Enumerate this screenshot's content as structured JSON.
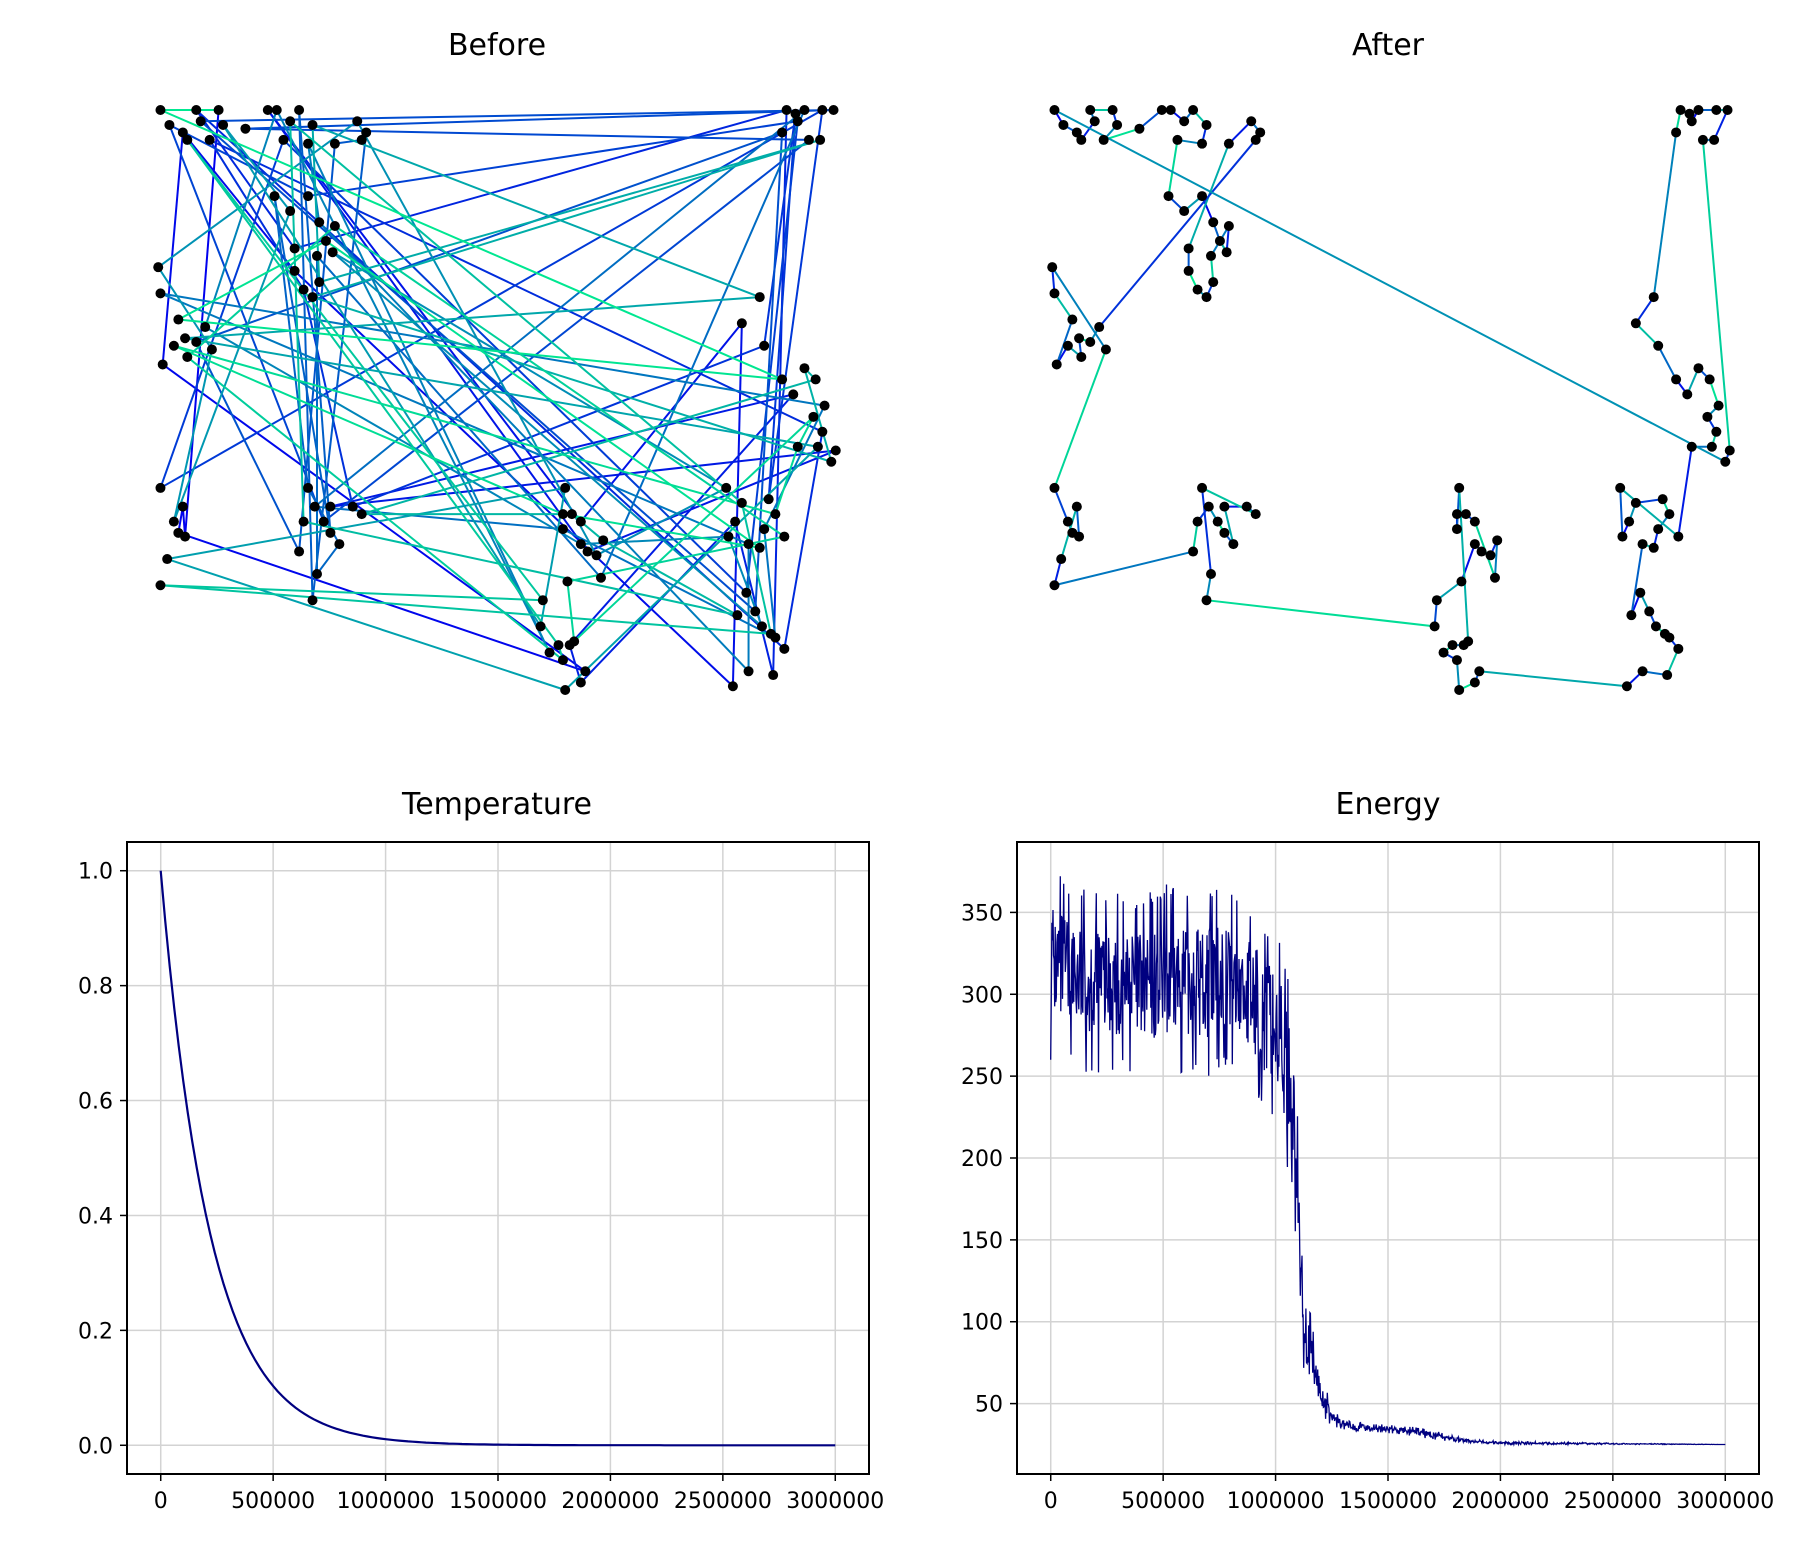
{
  "chart_data": [
    {
      "type": "line",
      "title": "Before",
      "description_of_marks": "random tour connecting cities",
      "axes_visible": false
    },
    {
      "type": "line",
      "title": "After",
      "axes_visible": false
    },
    {
      "type": "line",
      "title": "Temperature",
      "xlabel": "",
      "ylabel": "",
      "xlim": [
        -150000,
        3150000
      ],
      "ylim": [
        -0.05,
        1.05
      ],
      "xticks": [
        0,
        500000,
        1000000,
        1500000,
        2000000,
        2500000,
        3000000
      ],
      "xtick_labels": [
        "0",
        "500000",
        "1000000",
        "1500000",
        "2000000",
        "2500000",
        "3000000"
      ],
      "yticks": [
        0.0,
        0.2,
        0.4,
        0.6,
        0.8,
        1.0
      ],
      "ytick_labels": [
        "0.0",
        "0.2",
        "0.4",
        "0.6",
        "0.8",
        "1.0"
      ],
      "grid": true,
      "color": "#000080",
      "series": [
        {
          "x": [
            0,
            50000,
            100000,
            150000,
            200000,
            250000,
            300000,
            350000,
            400000,
            450000,
            500000,
            600000,
            700000,
            800000,
            900000,
            1000000,
            1200000,
            1500000,
            2000000,
            2500000,
            3000000
          ],
          "values": [
            1.0,
            0.88,
            0.75,
            0.6,
            0.48,
            0.38,
            0.3,
            0.23,
            0.18,
            0.14,
            0.1,
            0.06,
            0.035,
            0.02,
            0.012,
            0.007,
            0.003,
            0.001,
            0.0,
            0.0,
            0.0
          ]
        }
      ]
    },
    {
      "type": "line",
      "title": "Energy",
      "xlabel": "",
      "ylabel": "",
      "xlim": [
        -150000,
        3150000
      ],
      "ylim": [
        7,
        393
      ],
      "xticks": [
        0,
        500000,
        1000000,
        1500000,
        2000000,
        2500000,
        3000000
      ],
      "xtick_labels": [
        "0",
        "500000",
        "1000000",
        "1500000",
        "2000000",
        "2500000",
        "3000000"
      ],
      "yticks": [
        50,
        100,
        150,
        200,
        250,
        300,
        350
      ],
      "ytick_labels": [
        "50",
        "100",
        "150",
        "200",
        "250",
        "300",
        "350"
      ],
      "grid": true,
      "color": "#000080",
      "series": [
        {
          "band_x": [
            0,
            100000,
            200000,
            300000,
            400000,
            500000,
            600000,
            700000,
            800000,
            850000,
            900000,
            950000,
            1000000,
            1030000,
            1060000,
            1080000,
            1100000,
            1120000,
            1150000,
            1200000,
            1250000,
            1300000,
            1400000,
            1500000,
            1600000,
            1700000,
            1800000,
            1900000,
            2000000,
            2500000,
            3000000
          ],
          "band_high": [
            378,
            368,
            365,
            362,
            360,
            368,
            362,
            364,
            365,
            358,
            354,
            345,
            340,
            330,
            310,
            280,
            220,
            150,
            110,
            70,
            48,
            40,
            38,
            37,
            36,
            34,
            30,
            28,
            27,
            26,
            25
          ],
          "band_low": [
            260,
            255,
            250,
            252,
            248,
            250,
            252,
            250,
            255,
            250,
            240,
            230,
            220,
            205,
            190,
            170,
            110,
            70,
            55,
            42,
            36,
            34,
            33,
            32,
            30,
            28,
            26,
            25,
            25,
            25,
            25
          ]
        }
      ]
    }
  ],
  "cities": [
    [
      2,
      0
    ],
    [
      18,
      0
    ],
    [
      28,
      0
    ],
    [
      20,
      3
    ],
    [
      30,
      4
    ],
    [
      14,
      8
    ],
    [
      40,
      5
    ],
    [
      24,
      8
    ],
    [
      6,
      4
    ],
    [
      12,
      6
    ],
    [
      50,
      0
    ],
    [
      54,
      0
    ],
    [
      60,
      3
    ],
    [
      64,
      0
    ],
    [
      70,
      4
    ],
    [
      90,
      3
    ],
    [
      92,
      8
    ],
    [
      94,
      6
    ],
    [
      80,
      9
    ],
    [
      68,
      9
    ],
    [
      57,
      8
    ],
    [
      53,
      23
    ],
    [
      60,
      27
    ],
    [
      68,
      23
    ],
    [
      62,
      37
    ],
    [
      73,
      30
    ],
    [
      76,
      35
    ],
    [
      80,
      31
    ],
    [
      79,
      38
    ],
    [
      72,
      39
    ],
    [
      62,
      43
    ],
    [
      73,
      46
    ],
    [
      70,
      50
    ],
    [
      66,
      48
    ],
    [
      1,
      42
    ],
    [
      2,
      49
    ],
    [
      10,
      56
    ],
    [
      22,
      58
    ],
    [
      13,
      61
    ],
    [
      8,
      63
    ],
    [
      18,
      62
    ],
    [
      25,
      64
    ],
    [
      14,
      66
    ],
    [
      3,
      68
    ],
    [
      2,
      101
    ],
    [
      12,
      106
    ],
    [
      8,
      110
    ],
    [
      10,
      113
    ],
    [
      13,
      114
    ],
    [
      5,
      120
    ],
    [
      2,
      127
    ],
    [
      68,
      101
    ],
    [
      71,
      106
    ],
    [
      66,
      110
    ],
    [
      78,
      106
    ],
    [
      75,
      110
    ],
    [
      88,
      106
    ],
    [
      92,
      108
    ],
    [
      78,
      113
    ],
    [
      82,
      116
    ],
    [
      64,
      118
    ],
    [
      72,
      124
    ],
    [
      70,
      131
    ],
    [
      183,
      101
    ],
    [
      182,
      108
    ],
    [
      186,
      108
    ],
    [
      190,
      110
    ],
    [
      182,
      112
    ],
    [
      190,
      116
    ],
    [
      193,
      118
    ],
    [
      200,
      115
    ],
    [
      197,
      119
    ],
    [
      199,
      125
    ],
    [
      184,
      126
    ],
    [
      173,
      131
    ],
    [
      172,
      138
    ],
    [
      176,
      145
    ],
    [
      180,
      143
    ],
    [
      185,
      143
    ],
    [
      182,
      147
    ],
    [
      187,
      142
    ],
    [
      192,
      150
    ],
    [
      190,
      153
    ],
    [
      183,
      155
    ],
    [
      255,
      101
    ],
    [
      262,
      105
    ],
    [
      259,
      110
    ],
    [
      256,
      114
    ],
    [
      265,
      116
    ],
    [
      270,
      117
    ],
    [
      277,
      108
    ],
    [
      274,
      104
    ],
    [
      272,
      112
    ],
    [
      281,
      114
    ],
    [
      264,
      129
    ],
    [
      260,
      135
    ],
    [
      268,
      134
    ],
    [
      271,
      138
    ],
    [
      275,
      140
    ],
    [
      277,
      141
    ],
    [
      281,
      144
    ],
    [
      265,
      150
    ],
    [
      276,
      151
    ],
    [
      258,
      154
    ],
    [
      282,
      0
    ],
    [
      286,
      1
    ],
    [
      290,
      0
    ],
    [
      298,
      0
    ],
    [
      303,
      0
    ],
    [
      287,
      3
    ],
    [
      280,
      6
    ],
    [
      297,
      8
    ],
    [
      292,
      8
    ],
    [
      270,
      50
    ],
    [
      262,
      57
    ],
    [
      272,
      63
    ],
    [
      280,
      72
    ],
    [
      285,
      76
    ],
    [
      290,
      69
    ],
    [
      295,
      72
    ],
    [
      299,
      79
    ],
    [
      294,
      82
    ],
    [
      287,
      90
    ],
    [
      296,
      90
    ],
    [
      302,
      94
    ],
    [
      304,
      91
    ],
    [
      298,
      86
    ]
  ]
}
